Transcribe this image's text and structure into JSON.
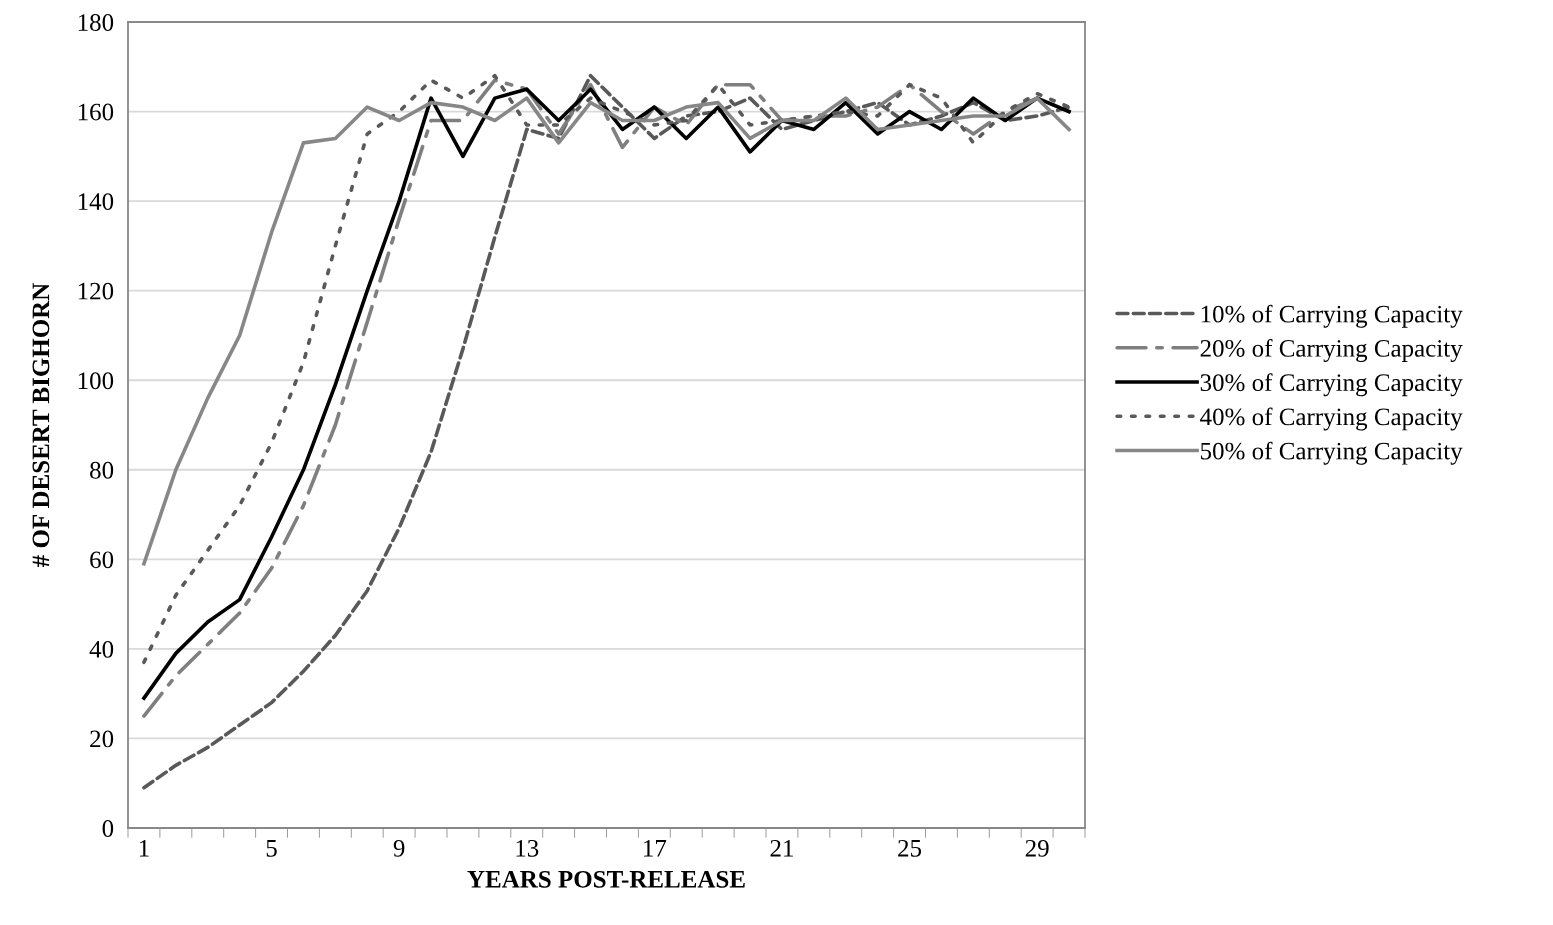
{
  "chart_data": {
    "type": "line",
    "xlabel": "YEARS POST-RELEASE",
    "ylabel": "# OF DESERT BIGHORN",
    "categories": [
      "1",
      null,
      null,
      null,
      "5",
      null,
      null,
      null,
      "9",
      null,
      null,
      null,
      "13",
      null,
      null,
      null,
      "17",
      null,
      null,
      null,
      "21",
      null,
      null,
      null,
      "25",
      null,
      null,
      null,
      "29",
      null
    ],
    "series": [
      {
        "name": "10% of Carrying Capacity",
        "color": "#595959",
        "line_style": "dashed",
        "values": [
          9,
          14,
          18,
          23,
          28,
          35,
          43,
          53,
          67,
          84,
          107,
          132,
          156,
          154,
          168,
          161,
          154,
          159,
          160,
          163,
          156,
          158,
          160,
          162,
          157,
          159,
          162,
          158,
          159,
          161
        ]
      },
      {
        "name": "20% of Carrying Capacity",
        "color": "#7f7f7f",
        "line_style": "dashdot",
        "values": [
          25,
          34,
          41,
          48,
          58,
          72,
          90,
          113,
          136,
          158,
          158,
          167,
          165,
          155,
          166,
          152,
          161,
          157,
          166,
          166,
          158,
          159,
          159,
          161,
          166,
          160,
          155,
          160,
          163,
          160
        ]
      },
      {
        "name": "30% of Carrying Capacity",
        "color": "#000000",
        "line_style": "solid",
        "values": [
          29,
          39,
          46,
          51,
          65,
          80,
          99,
          120,
          140,
          163,
          150,
          163,
          165,
          158,
          165,
          156,
          161,
          154,
          161,
          151,
          158,
          156,
          162,
          155,
          160,
          156,
          163,
          158,
          163,
          160
        ]
      },
      {
        "name": "40% of Carrying Capacity",
        "color": "#595959",
        "line_style": "dotted",
        "values": [
          37,
          52,
          62,
          72,
          86,
          104,
          130,
          155,
          160,
          167,
          163,
          168,
          157,
          157,
          163,
          160,
          157,
          158,
          166,
          157,
          158,
          159,
          160,
          159,
          166,
          163,
          153,
          160,
          164,
          161
        ]
      },
      {
        "name": "50% of Carrying Capacity",
        "color": "#878787",
        "line_style": "solid",
        "values": [
          59,
          80,
          96,
          110,
          133,
          153,
          154,
          161,
          158,
          162,
          161,
          158,
          163,
          153,
          162,
          158,
          158,
          161,
          162,
          154,
          158,
          158,
          163,
          156,
          157,
          158,
          159,
          159,
          163,
          156
        ]
      }
    ],
    "ylim": [
      0,
      180
    ],
    "yticks": [
      0,
      20,
      40,
      60,
      80,
      100,
      120,
      140,
      160,
      180
    ],
    "grid": "y",
    "legend": "right",
    "marker": "none"
  }
}
